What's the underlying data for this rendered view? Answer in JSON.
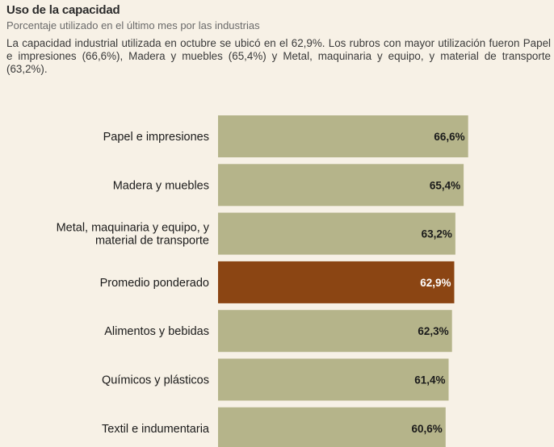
{
  "header": {
    "title": "Uso de la capacidad",
    "subtitle": "Porcentaje utilizado en el último mes por las industrias",
    "description": "La capacidad industrial utilizada en octubre se ubicó en el 62,9%. Los rubros con mayor utilización fueron Papel e impresiones (66,6%), Madera y muebles (65,4%) y Metal, maquinaria y equipo, y material de transporte (63,2%)."
  },
  "colors": {
    "background": "#f7f1e6",
    "bar_default": "#b5b48a",
    "bar_highlight": "#8b4513",
    "label_default": "#1a1a1a",
    "label_highlight": "#ffffff",
    "category_text": "#1a1a1a"
  },
  "chart_data": {
    "type": "bar",
    "orientation": "horizontal",
    "title": "Uso de la capacidad",
    "subtitle": "Porcentaje utilizado en el último mes por las industrias",
    "xlabel": "",
    "ylabel": "",
    "unit": "%",
    "xlim": [
      0,
      100
    ],
    "highlight_index": 3,
    "categories": [
      [
        "Papel e impresiones"
      ],
      [
        "Madera y muebles"
      ],
      [
        "Metal, maquinaria y equipo, y",
        "material de transporte"
      ],
      [
        "Promedio ponderado"
      ],
      [
        "Alimentos y bebidas"
      ],
      [
        "Químicos y plásticos"
      ],
      [
        "Textil e indumentaria"
      ]
    ],
    "values": [
      66.6,
      65.4,
      63.2,
      62.9,
      62.3,
      61.4,
      60.6
    ],
    "value_labels": [
      "66,6%",
      "65,4%",
      "63,2%",
      "62,9%",
      "62,3%",
      "61,4%",
      "60,6%"
    ]
  }
}
